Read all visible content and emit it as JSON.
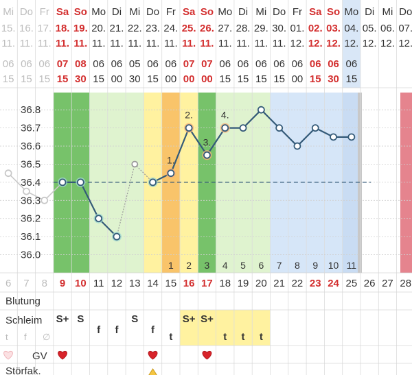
{
  "columns": [
    {
      "dow": "Mi",
      "dm": "15.",
      "mon": "11.",
      "h": "06",
      "m": "15",
      "cd": "6",
      "red": false,
      "faded": true
    },
    {
      "dow": "Do",
      "dm": "16.",
      "mon": "11.",
      "h": "06",
      "m": "15",
      "cd": "7",
      "red": false,
      "faded": true
    },
    {
      "dow": "Fr",
      "dm": "17.",
      "mon": "11.",
      "h": "06",
      "m": "15",
      "cd": "8",
      "red": false,
      "faded": true
    },
    {
      "dow": "Sa",
      "dm": "18.",
      "mon": "11.",
      "h": "07",
      "m": "15",
      "cd": "9",
      "red": true,
      "faded": false
    },
    {
      "dow": "So",
      "dm": "19.",
      "mon": "11.",
      "h": "08",
      "m": "30",
      "cd": "10",
      "red": true,
      "faded": false
    },
    {
      "dow": "Mo",
      "dm": "20.",
      "mon": "11.",
      "h": "06",
      "m": "15",
      "cd": "11",
      "red": false,
      "faded": false
    },
    {
      "dow": "Di",
      "dm": "21.",
      "mon": "11.",
      "h": "06",
      "m": "00",
      "cd": "12",
      "red": false,
      "faded": false
    },
    {
      "dow": "Mi",
      "dm": "22.",
      "mon": "11.",
      "h": "05",
      "m": "30",
      "cd": "13",
      "red": false,
      "faded": false
    },
    {
      "dow": "Do",
      "dm": "23.",
      "mon": "11.",
      "h": "06",
      "m": "15",
      "cd": "14",
      "red": false,
      "faded": false
    },
    {
      "dow": "Fr",
      "dm": "24.",
      "mon": "11.",
      "h": "06",
      "m": "00",
      "cd": "15",
      "red": false,
      "faded": false
    },
    {
      "dow": "Sa",
      "dm": "25.",
      "mon": "11.",
      "h": "07",
      "m": "00",
      "cd": "16",
      "red": true,
      "faded": false
    },
    {
      "dow": "So",
      "dm": "26.",
      "mon": "11.",
      "h": "07",
      "m": "00",
      "cd": "17",
      "red": true,
      "faded": false
    },
    {
      "dow": "Mo",
      "dm": "27.",
      "mon": "11.",
      "h": "06",
      "m": "15",
      "cd": "18",
      "red": false,
      "faded": false
    },
    {
      "dow": "Di",
      "dm": "28.",
      "mon": "11.",
      "h": "06",
      "m": "15",
      "cd": "19",
      "red": false,
      "faded": false
    },
    {
      "dow": "Mi",
      "dm": "29.",
      "mon": "11.",
      "h": "06",
      "m": "15",
      "cd": "20",
      "red": false,
      "faded": false
    },
    {
      "dow": "Do",
      "dm": "30.",
      "mon": "11.",
      "h": "06",
      "m": "15",
      "cd": "21",
      "red": false,
      "faded": false
    },
    {
      "dow": "Fr",
      "dm": "01.",
      "mon": "12.",
      "h": "06",
      "m": "00",
      "cd": "22",
      "red": false,
      "faded": false
    },
    {
      "dow": "Sa",
      "dm": "02.",
      "mon": "12.",
      "h": "06",
      "m": "15",
      "cd": "23",
      "red": true,
      "faded": false
    },
    {
      "dow": "So",
      "dm": "03.",
      "mon": "12.",
      "h": "06",
      "m": "30",
      "cd": "24",
      "red": true,
      "faded": false
    },
    {
      "dow": "Mo",
      "dm": "04.",
      "mon": "12.",
      "h": "06",
      "m": "15",
      "cd": "25",
      "red": false,
      "faded": false
    },
    {
      "dow": "Di",
      "dm": "05.",
      "mon": "12.",
      "h": "",
      "m": "",
      "cd": "26",
      "red": false,
      "faded": false
    },
    {
      "dow": "Mi",
      "dm": "06.",
      "mon": "12.",
      "h": "",
      "m": "",
      "cd": "27",
      "red": false,
      "faded": false
    },
    {
      "dow": "Do",
      "dm": "07.",
      "mon": "12.",
      "h": "",
      "m": "",
      "cd": "28",
      "red": false,
      "faded": false
    }
  ],
  "yaxis": {
    "ticks": [
      "36.8",
      "36.7",
      "36.6",
      "36.5",
      "36.4",
      "36.3",
      "36.2",
      "36.1",
      "36.0"
    ],
    "min": 35.9,
    "max": 36.85
  },
  "coverline": 36.4,
  "temps": [
    36.45,
    36.35,
    36.3,
    36.4,
    36.4,
    36.2,
    36.1,
    36.5,
    36.4,
    36.45,
    36.7,
    36.55,
    36.7,
    36.7,
    36.8,
    36.7,
    36.6,
    36.7,
    36.65,
    36.65
  ],
  "temp_status": [
    "faded",
    "faded",
    "faded",
    "ok",
    "ok",
    "ok",
    "ok",
    "excluded",
    "ok",
    "ok",
    "ok",
    "ok",
    "ok",
    "ok",
    "ok",
    "ok",
    "ok",
    "ok",
    "ok",
    "ok"
  ],
  "temp_labels": [
    {
      "col": 9,
      "text": "1."
    },
    {
      "col": 10,
      "text": "2."
    },
    {
      "col": 11,
      "text": "3."
    },
    {
      "col": 12,
      "text": "4."
    }
  ],
  "post_ov_days": [
    "1",
    "2",
    "3",
    "4",
    "5",
    "6",
    "7",
    "8",
    "9",
    "10",
    "11"
  ],
  "rows": {
    "bleeding_label": "Blutung",
    "mucus_label": "Schleim",
    "mucus_sub": [
      "t",
      "f",
      "∅"
    ],
    "gv_label": "GV",
    "disturb_label": "Störfak."
  },
  "mucus": [
    "",
    "",
    "",
    "S+",
    "S",
    "f",
    "f",
    "S",
    "f",
    "t",
    "S+",
    "S+",
    "t",
    "t",
    "t",
    "",
    "",
    "",
    "",
    "",
    "",
    "",
    ""
  ],
  "gv": [
    3,
    8,
    11
  ],
  "warning_col": 8,
  "colors": {
    "red": "#d32f2f",
    "line": "#345a78",
    "green": "#77c26a",
    "lightgreen": "#dff3cf",
    "yellow": "#fff2a0",
    "orange": "#f9c46a",
    "blue": "#d6e6f8",
    "pink": "#e5848e"
  }
}
